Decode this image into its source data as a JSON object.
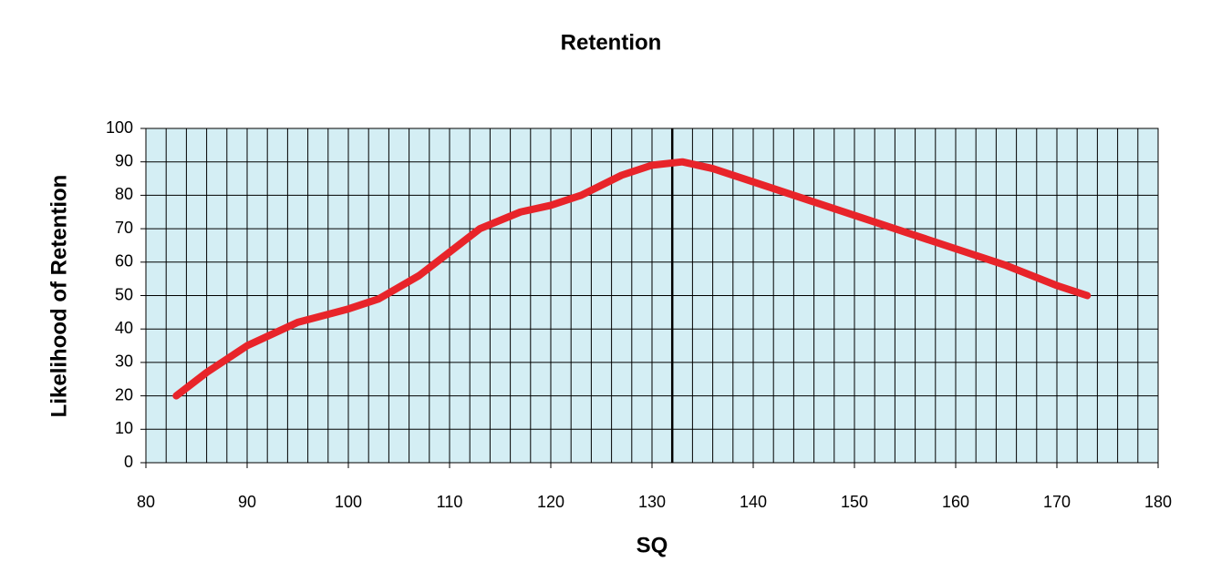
{
  "chart_data": {
    "type": "line",
    "title": "Retention",
    "x_label": "SQ",
    "y_label": "Likelihood of Retention",
    "x": [
      83,
      86,
      90,
      95,
      100,
      103,
      107,
      110,
      113,
      117,
      120,
      123,
      127,
      130,
      133,
      136,
      140,
      145,
      150,
      155,
      160,
      165,
      170,
      173
    ],
    "series": [
      {
        "color": "#e8242a",
        "values": [
          20,
          27,
          35,
          42,
          46,
          49,
          56,
          63,
          70,
          75,
          77,
          80,
          86,
          89,
          90,
          88,
          84,
          79,
          74,
          69,
          64,
          59,
          53,
          50
        ]
      }
    ],
    "reference_x": 132,
    "xlim": [
      80,
      180
    ],
    "xticks": [
      80,
      90,
      100,
      110,
      120,
      130,
      140,
      150,
      160,
      170,
      180
    ],
    "ylim": [
      0,
      100
    ],
    "yticks": [
      0,
      10,
      20,
      30,
      40,
      50,
      60,
      70,
      80,
      90,
      100
    ],
    "grid": true,
    "xgrid_step": 2,
    "plot_background": "#d4eef4"
  }
}
